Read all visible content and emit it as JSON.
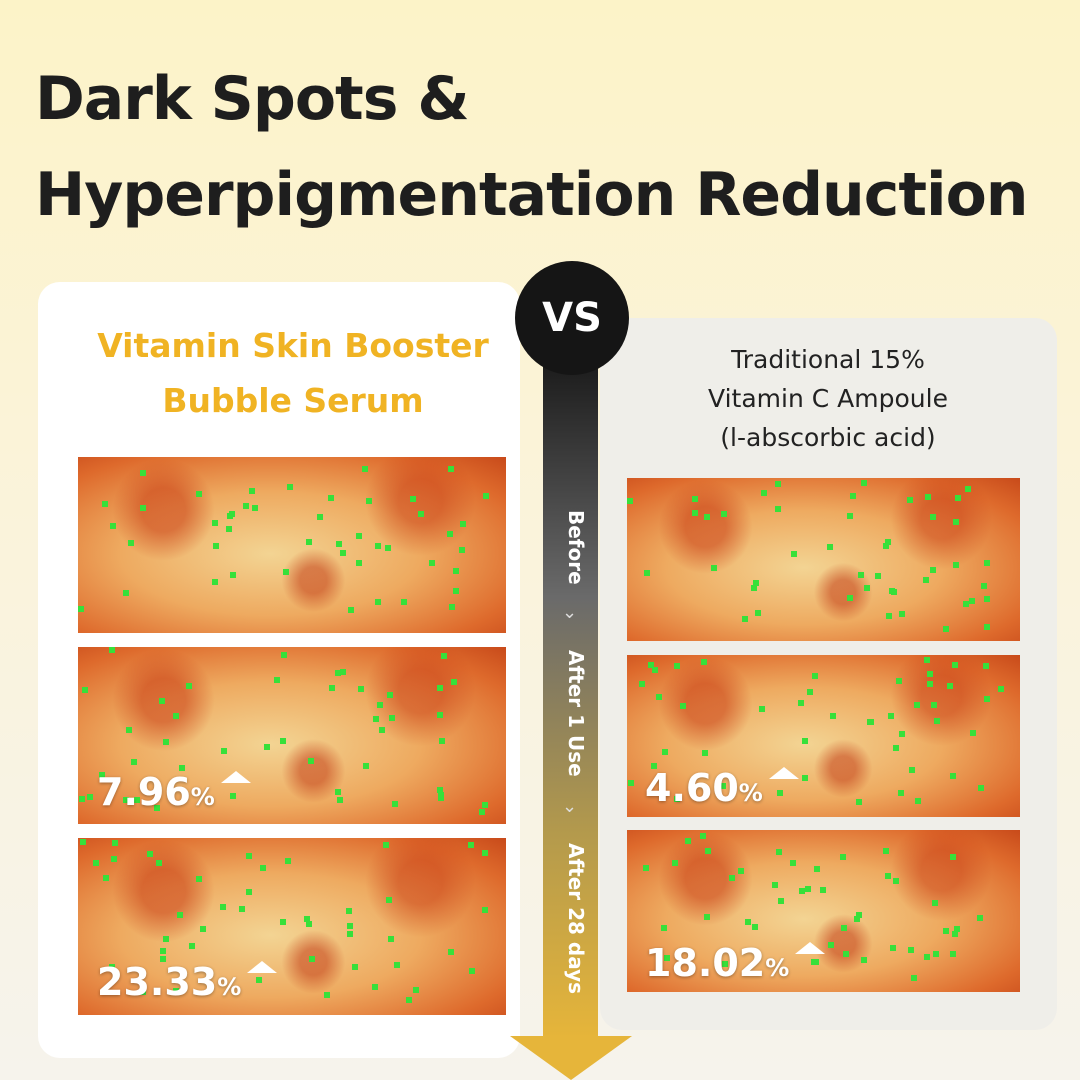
{
  "header": {
    "title_lines": [
      "Dark Spots &",
      "Hyperpigmentation Reduction"
    ]
  },
  "badge": "VS",
  "left": {
    "title_lines": [
      "Vitamin Skin Booster",
      "Bubble Serum"
    ],
    "results": [
      {
        "number": "7.96",
        "unit": "%"
      },
      {
        "number": "23.33",
        "unit": "%"
      }
    ]
  },
  "right": {
    "title_lines": [
      "Traditional 15%",
      "Vitamin C Ampoule",
      "(l-abscorbic acid)"
    ],
    "results": [
      {
        "number": "4.60",
        "unit": "%"
      },
      {
        "number": "18.02",
        "unit": "%"
      }
    ]
  },
  "timeline": [
    "Before",
    "After 1 Use",
    "After 28 days"
  ]
}
